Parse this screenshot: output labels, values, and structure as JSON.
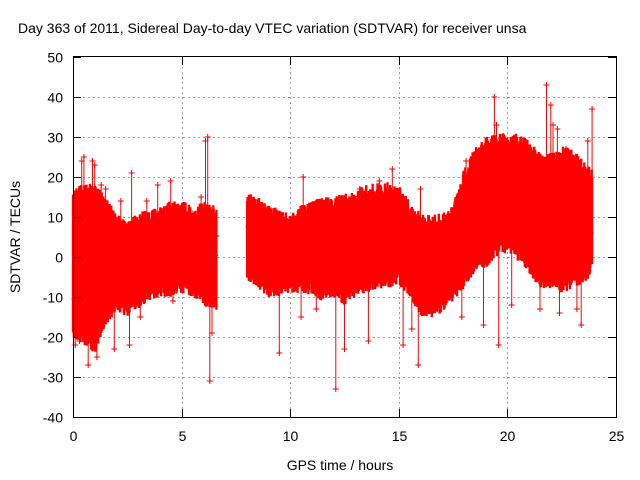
{
  "chart_data": {
    "type": "scatter",
    "title": "Day 363 of 2011, Sidereal Day-to-day VTEC variation (SDTVAR) for receiver unsa",
    "xlabel": "GPS time / hours",
    "ylabel": "SDTVAR / TECUs",
    "xlim": [
      0,
      25
    ],
    "ylim": [
      -40,
      50
    ],
    "xticks": [
      0,
      5,
      10,
      15,
      20,
      25
    ],
    "yticks": [
      -40,
      -30,
      -20,
      -10,
      0,
      10,
      20,
      30,
      40,
      50
    ],
    "grid": true,
    "marker": "+",
    "color": "#ff0000",
    "series": [
      {
        "name": "SDTVAR",
        "envelope": [
          {
            "x": 0.0,
            "low": -19,
            "high": 15
          },
          {
            "x": 0.5,
            "low": -20,
            "high": 17
          },
          {
            "x": 1.0,
            "low": -22,
            "high": 16
          },
          {
            "x": 1.5,
            "low": -15,
            "high": 14
          },
          {
            "x": 2.0,
            "low": -12,
            "high": 9
          },
          {
            "x": 2.5,
            "low": -13,
            "high": 7
          },
          {
            "x": 3.0,
            "low": -11,
            "high": 9
          },
          {
            "x": 3.5,
            "low": -9,
            "high": 10
          },
          {
            "x": 4.0,
            "low": -8,
            "high": 11
          },
          {
            "x": 4.5,
            "low": -8,
            "high": 12
          },
          {
            "x": 5.0,
            "low": -7,
            "high": 12
          },
          {
            "x": 5.5,
            "low": -8,
            "high": 11
          },
          {
            "x": 6.0,
            "low": -10,
            "high": 12
          },
          {
            "x": 6.5,
            "low": -12,
            "high": 11
          },
          {
            "x": 8.1,
            "low": -4,
            "high": 14
          },
          {
            "x": 8.5,
            "low": -6,
            "high": 13
          },
          {
            "x": 9.0,
            "low": -8,
            "high": 11
          },
          {
            "x": 9.5,
            "low": -8,
            "high": 10
          },
          {
            "x": 10.0,
            "low": -7,
            "high": 9
          },
          {
            "x": 10.5,
            "low": -7,
            "high": 11
          },
          {
            "x": 11.0,
            "low": -8,
            "high": 12
          },
          {
            "x": 11.5,
            "low": -9,
            "high": 13
          },
          {
            "x": 12.0,
            "low": -8,
            "high": 13
          },
          {
            "x": 12.5,
            "low": -10,
            "high": 14
          },
          {
            "x": 13.0,
            "low": -8,
            "high": 15
          },
          {
            "x": 13.5,
            "low": -7,
            "high": 16
          },
          {
            "x": 14.0,
            "low": -6,
            "high": 17
          },
          {
            "x": 14.5,
            "low": -6,
            "high": 17
          },
          {
            "x": 15.0,
            "low": -5,
            "high": 16
          },
          {
            "x": 15.5,
            "low": -8,
            "high": 12
          },
          {
            "x": 16.0,
            "low": -13,
            "high": 9
          },
          {
            "x": 16.5,
            "low": -14,
            "high": 9
          },
          {
            "x": 17.0,
            "low": -12,
            "high": 9
          },
          {
            "x": 17.5,
            "low": -9,
            "high": 11
          },
          {
            "x": 18.0,
            "low": -6,
            "high": 20
          },
          {
            "x": 18.5,
            "low": -2,
            "high": 26
          },
          {
            "x": 19.0,
            "low": -1,
            "high": 28
          },
          {
            "x": 19.5,
            "low": 2,
            "high": 29
          },
          {
            "x": 20.0,
            "low": 3,
            "high": 29
          },
          {
            "x": 20.5,
            "low": 1,
            "high": 29
          },
          {
            "x": 21.0,
            "low": -2,
            "high": 27
          },
          {
            "x": 21.5,
            "low": -6,
            "high": 24
          },
          {
            "x": 22.0,
            "low": -6,
            "high": 24
          },
          {
            "x": 22.5,
            "low": -7,
            "high": 26
          },
          {
            "x": 23.0,
            "low": -6,
            "high": 25
          },
          {
            "x": 23.5,
            "low": -5,
            "high": 22
          },
          {
            "x": 23.9,
            "low": -2,
            "high": 20
          }
        ],
        "gaps": [
          [
            6.6,
            8.0
          ]
        ],
        "outliers": [
          {
            "x": 0.1,
            "y": -22
          },
          {
            "x": 0.3,
            "y": -21
          },
          {
            "x": 0.4,
            "y": 24
          },
          {
            "x": 0.5,
            "y": 25
          },
          {
            "x": 0.7,
            "y": -27
          },
          {
            "x": 0.9,
            "y": 24
          },
          {
            "x": 1.0,
            "y": 23
          },
          {
            "x": 1.1,
            "y": -25
          },
          {
            "x": 1.3,
            "y": 18
          },
          {
            "x": 1.5,
            "y": 17
          },
          {
            "x": 1.9,
            "y": -23
          },
          {
            "x": 2.2,
            "y": 14
          },
          {
            "x": 2.6,
            "y": -22
          },
          {
            "x": 2.7,
            "y": 21
          },
          {
            "x": 3.1,
            "y": -15
          },
          {
            "x": 3.4,
            "y": 14
          },
          {
            "x": 3.9,
            "y": 18
          },
          {
            "x": 4.5,
            "y": 19
          },
          {
            "x": 4.6,
            "y": -11
          },
          {
            "x": 5.9,
            "y": 15
          },
          {
            "x": 6.1,
            "y": 29
          },
          {
            "x": 6.2,
            "y": 30
          },
          {
            "x": 6.3,
            "y": -31
          },
          {
            "x": 6.4,
            "y": -19
          },
          {
            "x": 9.5,
            "y": -24
          },
          {
            "x": 10.5,
            "y": -15
          },
          {
            "x": 10.6,
            "y": 20
          },
          {
            "x": 11.2,
            "y": -13
          },
          {
            "x": 12.1,
            "y": -33
          },
          {
            "x": 12.5,
            "y": -23
          },
          {
            "x": 13.2,
            "y": 17
          },
          {
            "x": 13.6,
            "y": -21
          },
          {
            "x": 14.1,
            "y": 19
          },
          {
            "x": 14.7,
            "y": 22
          },
          {
            "x": 15.2,
            "y": -22
          },
          {
            "x": 15.6,
            "y": -18
          },
          {
            "x": 15.9,
            "y": -27
          },
          {
            "x": 16.0,
            "y": 17
          },
          {
            "x": 17.9,
            "y": -15
          },
          {
            "x": 18.1,
            "y": 24
          },
          {
            "x": 18.9,
            "y": -17
          },
          {
            "x": 19.4,
            "y": 40
          },
          {
            "x": 19.5,
            "y": 33
          },
          {
            "x": 19.6,
            "y": -22
          },
          {
            "x": 20.2,
            "y": -12
          },
          {
            "x": 21.5,
            "y": -13
          },
          {
            "x": 21.8,
            "y": 43
          },
          {
            "x": 22.0,
            "y": 38
          },
          {
            "x": 22.1,
            "y": 33
          },
          {
            "x": 22.3,
            "y": 32
          },
          {
            "x": 22.4,
            "y": -14
          },
          {
            "x": 22.7,
            "y": 27
          },
          {
            "x": 23.2,
            "y": -13
          },
          {
            "x": 23.4,
            "y": -17
          },
          {
            "x": 23.7,
            "y": 29
          },
          {
            "x": 23.9,
            "y": 37
          }
        ]
      }
    ]
  }
}
